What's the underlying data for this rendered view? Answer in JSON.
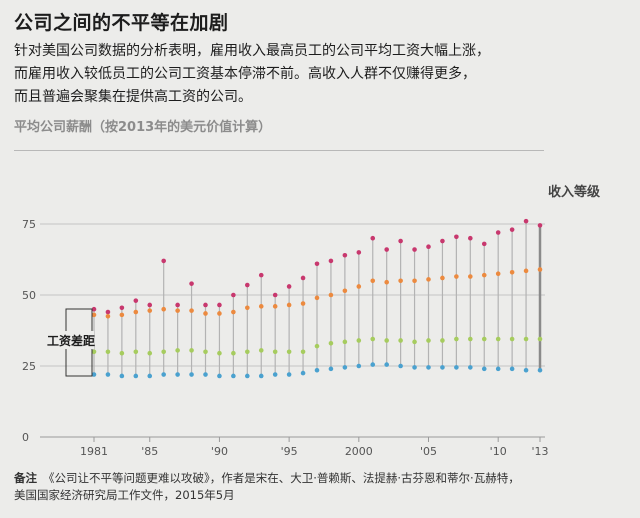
{
  "header": {
    "title": "公司之间的不平等在加剧",
    "description_lines": [
      "针对美国公司数据的分析表明，雇用收入最高员工的公司平均工资大幅上涨，",
      "而雇用收入较低员工的公司工资基本停滞不前。高收入人群不仅赚得更多，",
      "而且普遍会聚集在提供高工资的公司。"
    ],
    "chart_subtitle": "平均公司薪酬（按2013年的美元价值计算）"
  },
  "note": {
    "label": "备注",
    "text_lines": [
      "《公司让不平等问题更难以攻破》，作者是宋在、大卫·普赖斯、法提赫·古芬恩和蒂尔·瓦赫特，",
      "美国国家经济研究局工作文件，2015年5月"
    ]
  },
  "chart_data": {
    "type": "scatter",
    "title": "平均公司薪酬（按2013年的美元价值计算）",
    "legend_label": "收入等级",
    "annotation": "工资差距",
    "ylim": [
      0,
      80
    ],
    "y_ticks": [
      "0",
      "25",
      "50",
      "75"
    ],
    "x_range": [
      1981,
      2013
    ],
    "x_ticks": [
      {
        "x": 1981,
        "label": "1981"
      },
      {
        "x": 1985,
        "label": "'85"
      },
      {
        "x": 1990,
        "label": "'90"
      },
      {
        "x": 1995,
        "label": "'95"
      },
      {
        "x": 2000,
        "label": "2000"
      },
      {
        "x": 2005,
        "label": "'05"
      },
      {
        "x": 2010,
        "label": "'10"
      },
      {
        "x": 2013,
        "label": "'13"
      }
    ],
    "x": [
      1981,
      1982,
      1983,
      1984,
      1985,
      1986,
      1987,
      1988,
      1989,
      1990,
      1991,
      1992,
      1993,
      1994,
      1995,
      1996,
      1997,
      1998,
      1999,
      2000,
      2001,
      2002,
      2003,
      2004,
      2005,
      2006,
      2007,
      2008,
      2009,
      2010,
      2011,
      2012,
      2013
    ],
    "series": [
      {
        "color": "#c8386e",
        "values": [
          45,
          44,
          45.5,
          48,
          46.5,
          62,
          46.5,
          54,
          46.5,
          46.5,
          50,
          53.5,
          57,
          50,
          53,
          56,
          61,
          62,
          64,
          65,
          70,
          66,
          69,
          66,
          67,
          69,
          70.5,
          70,
          68,
          72,
          73,
          76,
          74.5
        ]
      },
      {
        "color": "#ec8a3f",
        "values": [
          43,
          42.5,
          43,
          44,
          44.5,
          45,
          44.5,
          44.5,
          43.5,
          43.5,
          44,
          45.5,
          46,
          46,
          46.5,
          47,
          49,
          50,
          51.5,
          53,
          55,
          54.5,
          55,
          55,
          55.5,
          56,
          56.5,
          56.5,
          57,
          57.5,
          58,
          58.5,
          59
        ]
      },
      {
        "color": "#a6cc5e",
        "values": [
          30,
          30,
          29.5,
          30,
          29.5,
          30,
          30.5,
          30.5,
          30,
          29.5,
          29.5,
          30,
          30.5,
          30,
          30,
          30,
          32,
          33,
          33.5,
          34,
          34.5,
          34,
          34,
          33.5,
          34,
          34,
          34.5,
          34.5,
          34.5,
          34.5,
          34.5,
          34.5,
          34.5
        ]
      },
      {
        "color": "#4aa1cf",
        "values": [
          22,
          22,
          21.5,
          21.5,
          21.5,
          22,
          22,
          22,
          22,
          21.5,
          21.5,
          21.5,
          21.5,
          22,
          22,
          22.5,
          23.5,
          24,
          24.5,
          25,
          25.5,
          25.5,
          25,
          24.5,
          24.5,
          24.5,
          24.5,
          24.5,
          24,
          24,
          24,
          23.5,
          23.5
        ]
      }
    ]
  }
}
